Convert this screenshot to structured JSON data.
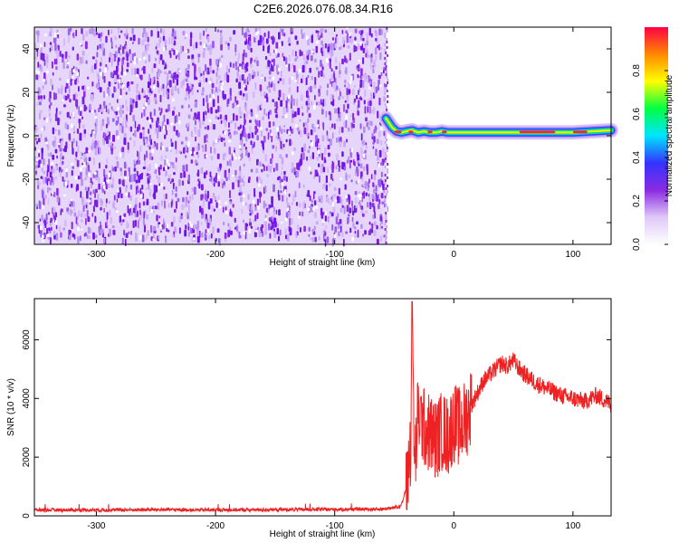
{
  "title": "C2E6.2026.076.08.34.R16",
  "chart_data": [
    {
      "type": "heatmap",
      "title": "C2E6.2026.076.08.34.R16",
      "xlabel": "Height of straight line (km)",
      "ylabel": "Frequency (Hz)",
      "xlim": [
        -352,
        132
      ],
      "ylim": [
        -50,
        50
      ],
      "x_ticks": [
        -300,
        -200,
        -100,
        0,
        100
      ],
      "y_ticks": [
        -40,
        -20,
        0,
        20,
        40
      ],
      "noise_region_x": [
        -352,
        -57
      ],
      "signal_line": {
        "x_range": [
          -57,
          132
        ],
        "frequency_hz": [
          [
            -57,
            8
          ],
          [
            -52,
            4
          ],
          [
            -48,
            2
          ],
          [
            -44,
            1.5
          ],
          [
            -40,
            2
          ],
          [
            -35,
            2.5
          ],
          [
            -30,
            1.5
          ],
          [
            -25,
            2
          ],
          [
            -20,
            1.5
          ],
          [
            -15,
            1.5
          ],
          [
            -10,
            2
          ],
          [
            -5,
            1.5
          ],
          [
            0,
            1.5
          ],
          [
            20,
            1.5
          ],
          [
            40,
            1.5
          ],
          [
            60,
            1.5
          ],
          [
            80,
            1.5
          ],
          [
            100,
            1.5
          ],
          [
            115,
            2
          ],
          [
            132,
            2.5
          ]
        ]
      },
      "colorbar": {
        "label": "Normalized spectral amplitude",
        "range": [
          0,
          1
        ],
        "ticks": [
          "0.0",
          "0.2",
          "0.4",
          "0.6",
          "0.8"
        ],
        "colors": [
          "#ffffff",
          "#e0c8f8",
          "#8a2be2",
          "#3333ff",
          "#00e5ff",
          "#00ff44",
          "#ffff00",
          "#ff8800",
          "#ff0044"
        ]
      }
    },
    {
      "type": "line",
      "xlabel": "Height of straight line (km)",
      "ylabel": "SNR (10 * v/v)",
      "xlim": [
        -352,
        132
      ],
      "ylim": [
        0,
        7400
      ],
      "x_ticks": [
        -300,
        -200,
        -100,
        0,
        100
      ],
      "y_ticks": [
        0,
        2000,
        4000,
        6000
      ],
      "color": "#ee2222",
      "x": [
        -352,
        -300,
        -250,
        -200,
        -150,
        -100,
        -60,
        -45,
        -40,
        -36,
        -35,
        -33,
        -30,
        -25,
        -20,
        -15,
        -10,
        -5,
        0,
        5,
        10,
        15,
        20,
        25,
        30,
        35,
        40,
        45,
        50,
        55,
        60,
        70,
        80,
        90,
        100,
        110,
        120,
        132
      ],
      "y": [
        200,
        200,
        210,
        200,
        210,
        220,
        230,
        300,
        900,
        2500,
        7300,
        1500,
        3500,
        3000,
        2800,
        2600,
        2900,
        2700,
        3200,
        3000,
        3300,
        3800,
        4200,
        4600,
        4800,
        5000,
        5200,
        5100,
        5300,
        5000,
        4800,
        4500,
        4300,
        4100,
        4000,
        3900,
        4100,
        3800
      ]
    }
  ]
}
